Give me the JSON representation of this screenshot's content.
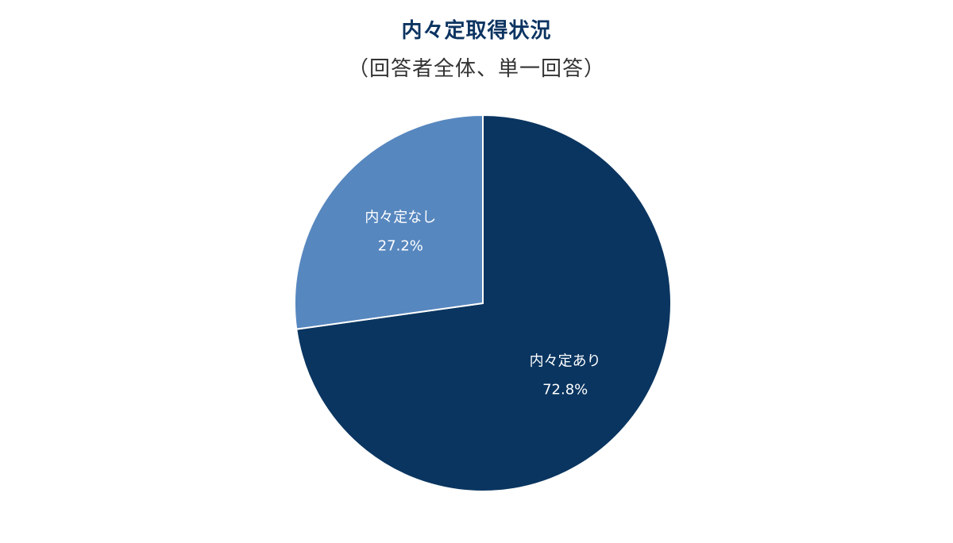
{
  "chart_data": {
    "type": "pie",
    "title": "内々定取得状況",
    "subtitle": "（回答者全体、単一回答）",
    "slices": [
      {
        "label": "内々定あり",
        "value": 72.8,
        "value_label": "72.8%",
        "color": "#0a3560"
      },
      {
        "label": "内々定なし",
        "value": 27.2,
        "value_label": "27.2%",
        "color": "#5787bf"
      }
    ],
    "legend": "none",
    "start_angle": "12 o'clock",
    "direction": "clockwise"
  }
}
